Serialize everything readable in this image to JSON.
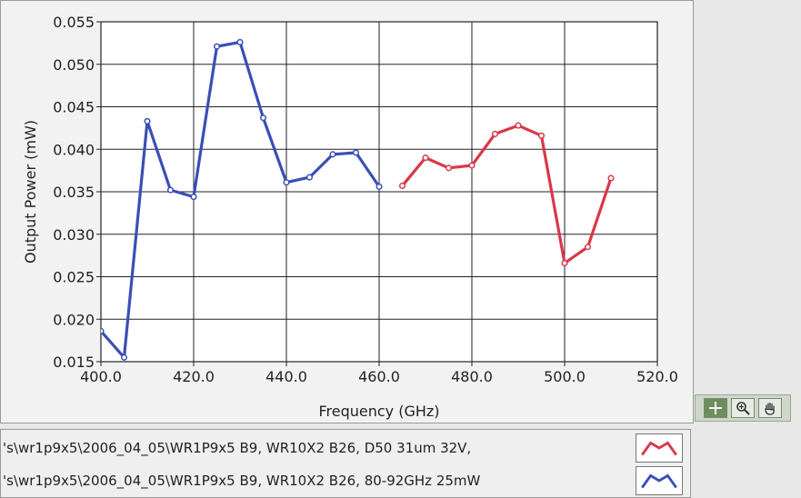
{
  "chart_data": {
    "type": "line",
    "xlabel": "Frequency (GHz)",
    "ylabel": "Output Power (mW)",
    "xlim": [
      400,
      520
    ],
    "ylim": [
      0.015,
      0.055
    ],
    "xticks": [
      "400.0",
      "420.0",
      "440.0",
      "460.0",
      "480.0",
      "500.0",
      "520.0"
    ],
    "yticks": [
      "0.015",
      "0.020",
      "0.025",
      "0.030",
      "0.035",
      "0.040",
      "0.045",
      "0.050",
      "0.055"
    ],
    "grid": true,
    "series": [
      {
        "color": "#3a4fb5",
        "x": [
          400,
          405,
          410,
          415,
          420,
          425,
          430,
          435,
          440,
          445,
          450,
          455,
          460
        ],
        "y": [
          0.0186,
          0.0155,
          0.0433,
          0.0352,
          0.0344,
          0.0521,
          0.0526,
          0.0437,
          0.0361,
          0.0367,
          0.0394,
          0.0396,
          0.0356
        ]
      },
      {
        "color": "#d8384a",
        "x": [
          465,
          470,
          475,
          480,
          485,
          490,
          495,
          500,
          505,
          510
        ],
        "y": [
          0.0357,
          0.039,
          0.0378,
          0.0381,
          0.0418,
          0.0428,
          0.0416,
          0.0266,
          0.0285,
          0.0366
        ]
      }
    ]
  },
  "legend": {
    "entries": [
      {
        "label": "'s\\wr1p9x5\\2006_04_05\\WR1P9x5 B9, WR10X2 B26, D50 31um 32V,",
        "color": "#d8384a"
      },
      {
        "label": "'s\\wr1p9x5\\2006_04_05\\WR1P9x5 B9, WR10X2 B26, 80-92GHz 25mW",
        "color": "#3a4fb5"
      }
    ]
  },
  "palette": {
    "tools": [
      {
        "icon": "crosshair-icon"
      },
      {
        "icon": "zoom-icon"
      },
      {
        "icon": "pan-hand-icon"
      }
    ]
  }
}
